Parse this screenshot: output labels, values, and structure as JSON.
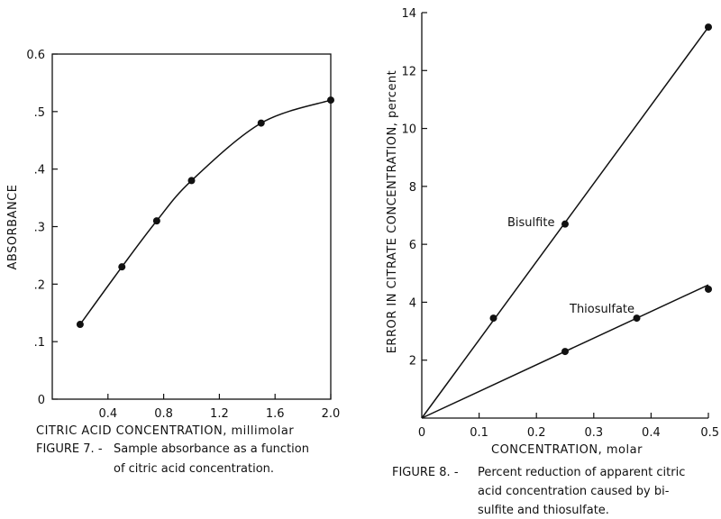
{
  "chart_data": [
    {
      "type": "line",
      "xlabel": "CITRIC ACID CONCENTRATION, millimolar",
      "ylabel": "ABSORBANCE",
      "xlim": [
        0,
        2.0
      ],
      "ylim": [
        0,
        0.6
      ],
      "x_ticks": [
        0.4,
        0.8,
        1.2,
        1.6,
        2.0
      ],
      "x_tick_labels": [
        "0.4",
        "0.8",
        "1.2",
        "1.6",
        "2.0"
      ],
      "y_ticks": [
        0,
        0.1,
        0.2,
        0.3,
        0.4,
        0.5,
        0.6
      ],
      "y_tick_labels": [
        "0",
        ".1",
        ".2",
        ".3",
        ".4",
        ".5",
        "0.6"
      ],
      "grid": false,
      "series": [
        {
          "x": [
            0.2,
            0.5,
            0.75,
            1.0,
            1.5,
            2.0
          ],
          "y": [
            0.13,
            0.23,
            0.31,
            0.38,
            0.48,
            0.52
          ]
        }
      ],
      "caption_label": "FIGURE 7. -",
      "caption_lines": [
        "Sample absorbance as a function",
        "of citric acid concentration."
      ]
    },
    {
      "type": "line",
      "xlabel": "CONCENTRATION, molar",
      "ylabel": "ERROR IN CITRATE CONCENTRATION, percent",
      "xlim": [
        0,
        0.5
      ],
      "ylim": [
        0,
        14
      ],
      "x_ticks": [
        0,
        0.1,
        0.2,
        0.3,
        0.4,
        0.5
      ],
      "x_tick_labels": [
        "0",
        "0.1",
        "0.2",
        "0.3",
        "0.4",
        "0.5"
      ],
      "y_ticks": [
        2,
        4,
        6,
        8,
        10,
        12,
        14
      ],
      "y_tick_labels": [
        "2",
        "4",
        "6",
        "8",
        "10",
        "12",
        "14"
      ],
      "grid": false,
      "series": [
        {
          "name": "Bisulfite",
          "x": [
            0.125,
            0.25,
            0.5
          ],
          "y": [
            3.45,
            6.7,
            13.5
          ],
          "line_x": [
            0,
            0.5
          ],
          "line_y": [
            0,
            13.5
          ]
        },
        {
          "name": "Thiosulfate",
          "x": [
            0.25,
            0.375,
            0.5
          ],
          "y": [
            2.3,
            3.45,
            4.45
          ],
          "line_x": [
            0,
            0.5
          ],
          "line_y": [
            0,
            4.6
          ]
        }
      ],
      "caption_label": "FIGURE 8. -",
      "caption_lines": [
        "Percent reduction of apparent citric",
        "acid concentration caused by bi-",
        "sulfite and thiosulfate."
      ]
    }
  ]
}
